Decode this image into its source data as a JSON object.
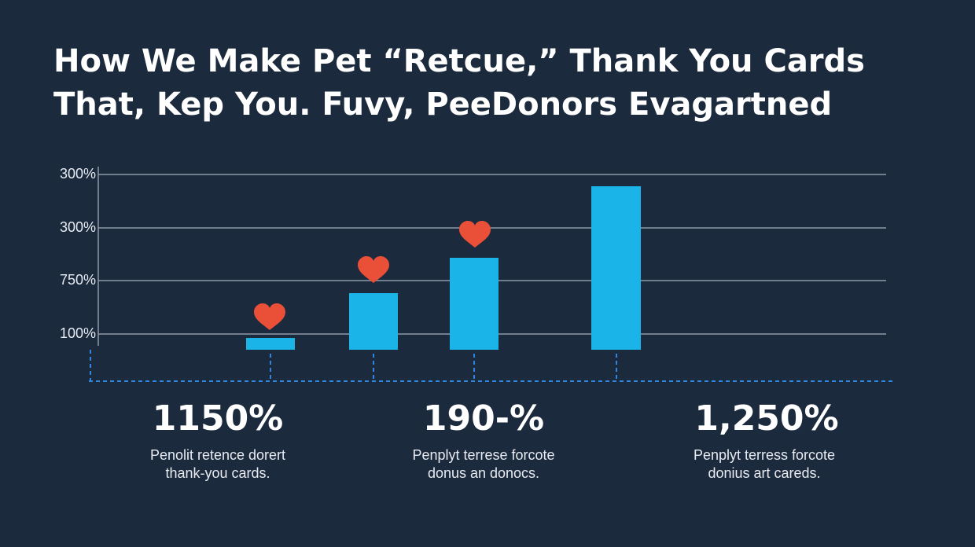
{
  "title": [
    "How We Make Pet “Retcue,” Thank You Cards",
    "That, Kep You. Fuvy, PeeDonors Evagartned"
  ],
  "axis_labels": [
    "300%",
    "300%",
    "750%",
    "100%"
  ],
  "stats": [
    {
      "value": "1150%",
      "caption": [
        "Penolit retence dorert",
        "thank-you cards."
      ]
    },
    {
      "value": "190-%",
      "caption": [
        "Penplyt terrese forcote",
        "donus an donocs."
      ]
    },
    {
      "value": "1,250%",
      "caption": [
        "Penplyt terress forcote",
        "donius art careds."
      ]
    }
  ]
}
